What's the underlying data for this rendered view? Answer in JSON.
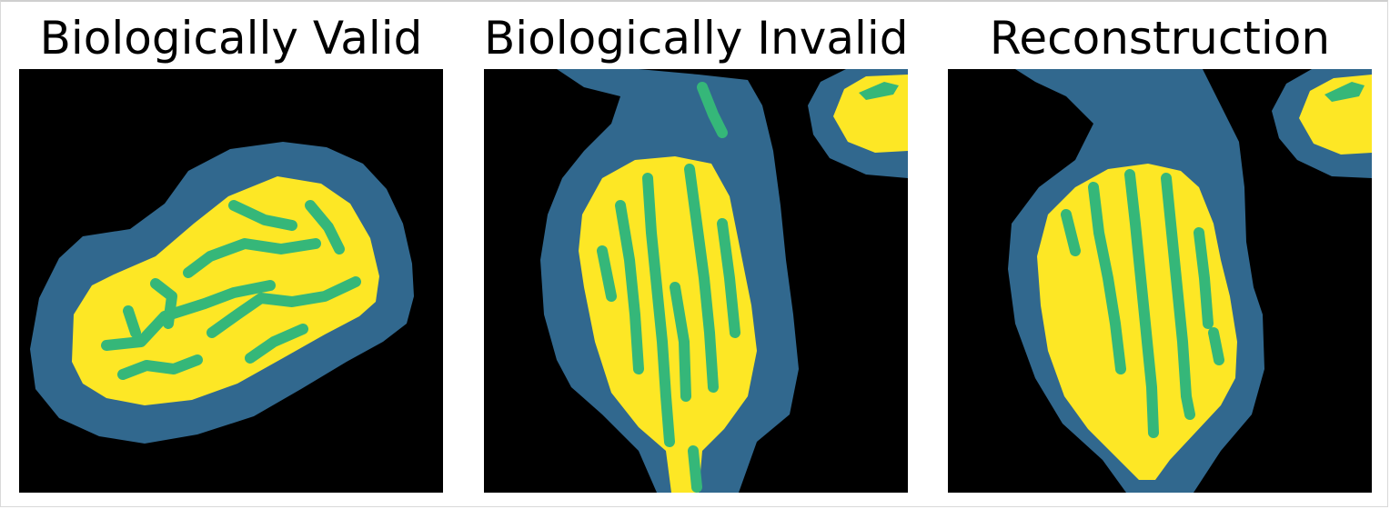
{
  "panels": [
    {
      "title": "Biologically Valid"
    },
    {
      "title": "Biologically Invalid"
    },
    {
      "title": "Reconstruction"
    }
  ],
  "colors": {
    "background": "#000000",
    "membrane": "#31688e",
    "interior": "#fde725",
    "cristae": "#35b779"
  }
}
